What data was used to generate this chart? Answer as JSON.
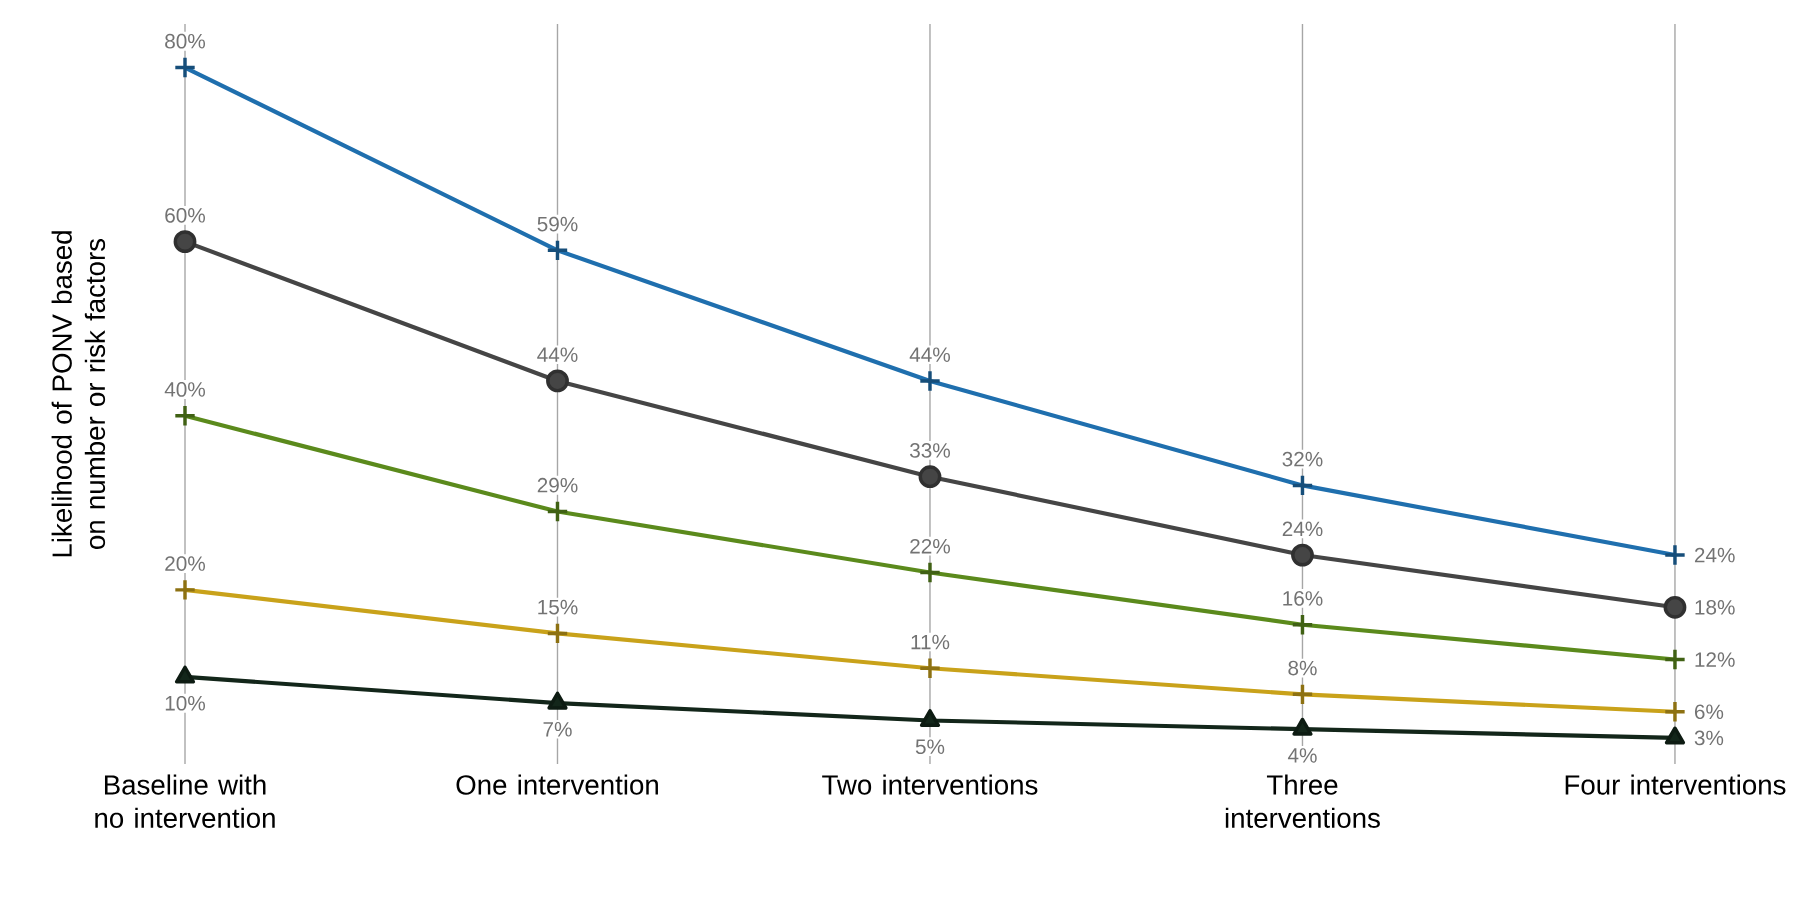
{
  "chart_data": {
    "type": "line",
    "ylabel": "Likelihood of PONV based on number or risk factors",
    "categories": [
      "Baseline with no intervention",
      "One intervention",
      "Two interventions",
      "Three interventions",
      "Four interventions"
    ],
    "ylim": [
      0,
      85
    ],
    "grid": "x",
    "tick_labels": "x",
    "series": [
      {
        "color": "#1f6fae",
        "marker": "cross",
        "values": [
          80,
          59,
          44,
          32,
          24
        ],
        "value_labels": [
          "80%",
          "59%",
          "44%",
          "32%",
          "24%"
        ]
      },
      {
        "color": "#454545",
        "marker": "circle",
        "values": [
          60,
          44,
          33,
          24,
          18
        ],
        "value_labels": [
          "60%",
          "44%",
          "33%",
          "24%",
          "18%"
        ]
      },
      {
        "color": "#5b8a1c",
        "marker": "cross",
        "values": [
          40,
          29,
          22,
          16,
          12
        ],
        "value_labels": [
          "40%",
          "29%",
          "22%",
          "16%",
          "12%"
        ]
      },
      {
        "color": "#c9a21a",
        "marker": "cross",
        "values": [
          20,
          15,
          11,
          8,
          6
        ],
        "value_labels": [
          "20%",
          "15%",
          "11%",
          "8%",
          "6%"
        ]
      },
      {
        "color": "#13261a",
        "marker": "triangle",
        "values": [
          10,
          7,
          5,
          4,
          3
        ],
        "value_labels": [
          "10%",
          "7%",
          "5%",
          "4%",
          "3%"
        ]
      }
    ]
  }
}
